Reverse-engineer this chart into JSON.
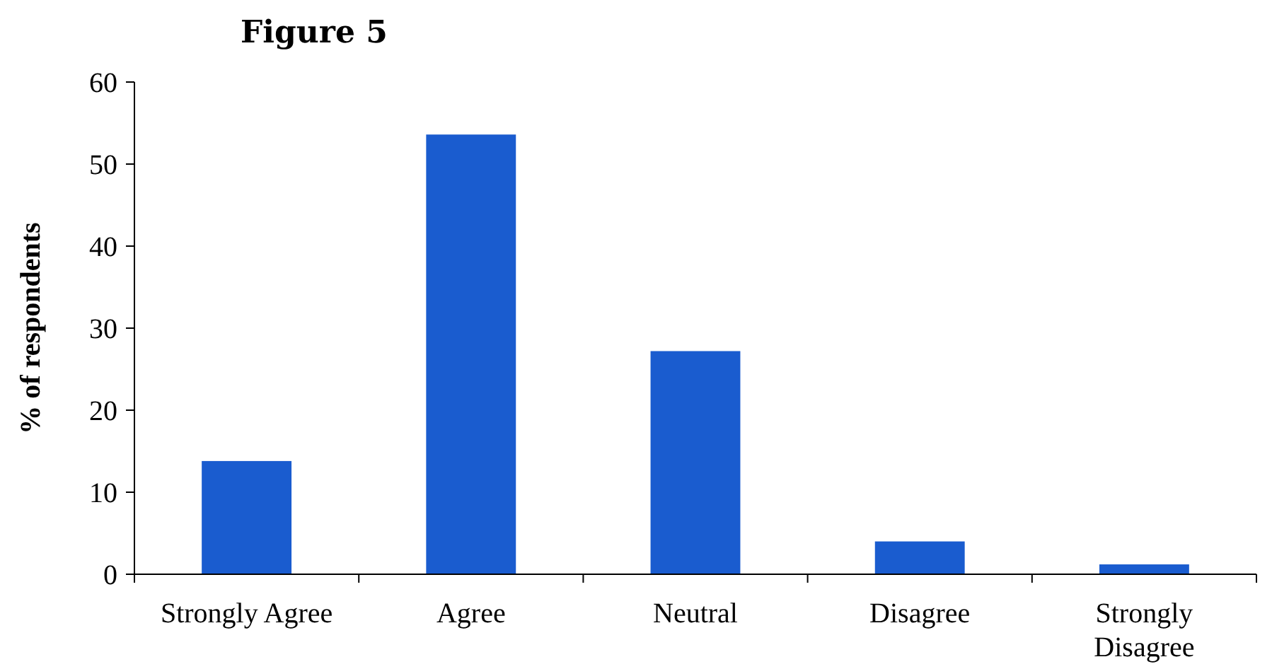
{
  "chart_data": {
    "type": "bar",
    "title": "Figure 5",
    "ylabel": "% of respondents",
    "categories": [
      "Strongly Agree",
      "Agree",
      "Neutral",
      "Disagree",
      "Strongly Disagree"
    ],
    "values": [
      13.8,
      53.6,
      27.2,
      4.0,
      1.2
    ],
    "color": "#1a5ccf",
    "ylim": [
      0,
      60
    ],
    "yticks": [
      0,
      10,
      20,
      30,
      40,
      50,
      60
    ],
    "grid": false
  }
}
